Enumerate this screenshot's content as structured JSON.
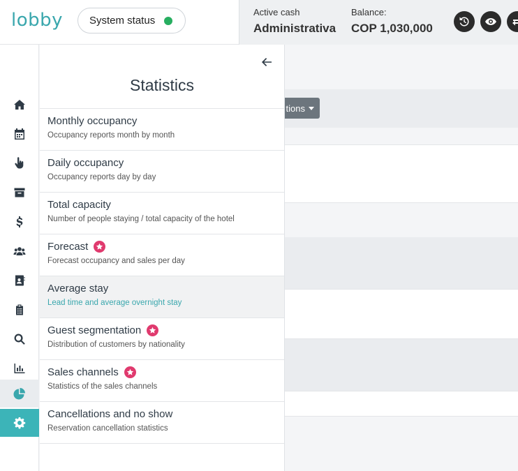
{
  "header": {
    "logo_text": "lobby",
    "system_status_label": "System status",
    "status_color": "#27ae60",
    "active_cash_label": "Active cash",
    "active_cash_value": "Administrativa",
    "balance_label": "Balance:",
    "balance_value": "COP 1,030,000",
    "buttons": [
      "history-icon",
      "eye-icon",
      "transfer-icon"
    ]
  },
  "sidebar": {
    "items": [
      {
        "icon": "home-icon"
      },
      {
        "icon": "calendar-icon"
      },
      {
        "icon": "hand-pointer-icon"
      },
      {
        "icon": "archive-icon"
      },
      {
        "icon": "dollar-icon"
      },
      {
        "icon": "users-icon"
      },
      {
        "icon": "contact-book-icon"
      },
      {
        "icon": "clipboard-icon"
      },
      {
        "icon": "search-icon"
      },
      {
        "icon": "bar-chart-icon"
      },
      {
        "icon": "pie-chart-icon",
        "active": true
      },
      {
        "icon": "gear-icon"
      }
    ]
  },
  "background": {
    "actions_label": "tions"
  },
  "panel": {
    "title": "Statistics",
    "items": [
      {
        "title": "Monthly occupancy",
        "subtitle": "Occupancy reports month by month",
        "premium": false
      },
      {
        "title": "Daily occupancy",
        "subtitle": "Occupancy reports day by day",
        "premium": false
      },
      {
        "title": "Total capacity",
        "subtitle": "Number of people staying / total capacity of the hotel",
        "premium": false
      },
      {
        "title": "Forecast",
        "subtitle": "Forecast occupancy and sales per day",
        "premium": true
      },
      {
        "title": "Average stay",
        "subtitle": "Lead time and average overnight stay",
        "premium": false,
        "hover": true
      },
      {
        "title": "Guest segmentation",
        "subtitle": "Distribution of customers by nationality",
        "premium": true
      },
      {
        "title": "Sales channels",
        "subtitle": "Statistics of the sales channels",
        "premium": true
      },
      {
        "title": "Cancellations and no show",
        "subtitle": "Reservation cancellation statistics",
        "premium": false
      }
    ]
  },
  "colors": {
    "accent": "#3aa7ad",
    "premium_badge": "#e03a6e",
    "settings_bg": "#3cb4b8"
  }
}
